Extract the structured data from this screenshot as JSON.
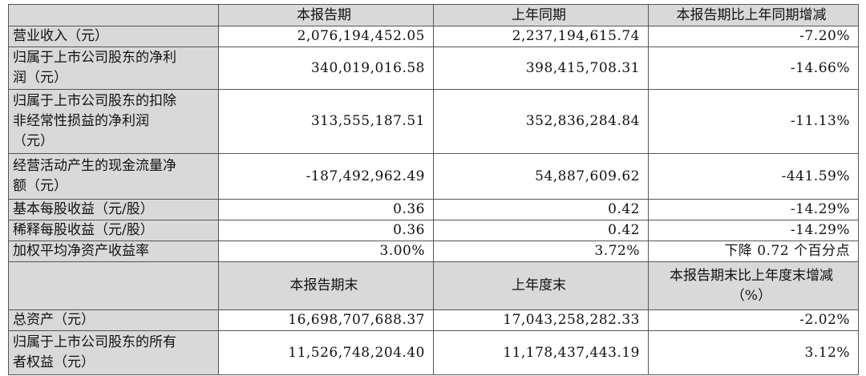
{
  "table": {
    "header": [
      "本报告期",
      "上年同期",
      "本报告期比上年同期增减"
    ],
    "rows": [
      {
        "label": [
          "营业收入（元）"
        ],
        "cells": [
          "2,076,194,452.05",
          "2,237,194,615.74",
          "-7.20%"
        ]
      },
      {
        "label": [
          "归属于上市公司股东的净利",
          "润（元）"
        ],
        "cells": [
          "340,019,016.58",
          "398,415,708.31",
          "-14.66%"
        ]
      },
      {
        "label": [
          "归属于上市公司股东的扣除",
          "非经常性损益的净利润",
          "（元）"
        ],
        "cells": [
          "313,555,187.51",
          "352,836,284.84",
          "-11.13%"
        ]
      },
      {
        "label": [
          "经营活动产生的现金流量净",
          "额（元）"
        ],
        "cells": [
          "-187,492,962.49",
          "54,887,609.62",
          "-441.59%"
        ]
      },
      {
        "label": [
          "基本每股收益（元/股）"
        ],
        "cells": [
          "0.36",
          "0.42",
          "-14.29%"
        ]
      },
      {
        "label": [
          "稀释每股收益（元/股）"
        ],
        "cells": [
          "0.36",
          "0.42",
          "-14.29%"
        ]
      },
      {
        "label": [
          "加权平均净资产收益率"
        ],
        "cells": [
          "3.00%",
          "3.72%",
          "下降 0.72 个百分点"
        ]
      }
    ],
    "header2": [
      [
        "本报告期末"
      ],
      [
        "上年度末"
      ],
      [
        "本报告期末比上年度末增减",
        "（%）"
      ]
    ],
    "rows2": [
      {
        "label": [
          "总资产（元）"
        ],
        "cells": [
          "16,698,707,688.37",
          "17,043,258,282.33",
          "-2.02%"
        ]
      },
      {
        "label": [
          "归属于上市公司股东的所有",
          "者权益（元）"
        ],
        "cells": [
          "11,526,748,204.40",
          "11,178,437,443.19",
          "3.12%"
        ]
      }
    ]
  }
}
